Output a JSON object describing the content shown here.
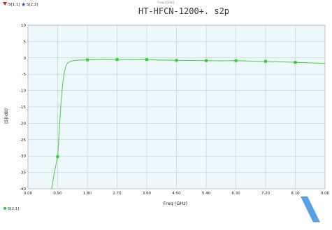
{
  "chart_data": {
    "type": "line",
    "title": "HT-HFCN-1200+. s2p",
    "top_caption": "Freq [GHz]",
    "xlabel": "Freq (GHz)",
    "ylabel": "|S|(dB)",
    "xlim": [
      0,
      9
    ],
    "ylim": [
      -40,
      10
    ],
    "xticks": [
      "0.00",
      "0.90",
      "1.80",
      "2.70",
      "3.60",
      "4.50",
      "5.40",
      "6.30",
      "7.20",
      "8.10",
      "9.00"
    ],
    "yticks": [
      "10",
      "5",
      "0",
      "-5",
      "-10",
      "-15",
      "-20",
      "-25",
      "-30",
      "-35",
      "-40"
    ],
    "grid": true,
    "top_legend": [
      {
        "label": "S[1,1]",
        "color": "#cc2222",
        "marker": "down-triangle"
      },
      {
        "label": "S[2,2]",
        "color": "#2244cc",
        "marker": "star"
      }
    ],
    "bottom_legend": [
      {
        "label": "S[2,1]",
        "color": "#33cc33",
        "marker": "circle"
      }
    ],
    "series": [
      {
        "name": "S[2,1]",
        "color": "#4cc84c",
        "x": [
          0.72,
          0.76,
          0.8,
          0.85,
          0.9,
          0.95,
          1.0,
          1.05,
          1.1,
          1.15,
          1.2,
          1.3,
          1.4,
          1.5,
          1.6,
          1.8,
          2.0,
          2.3,
          2.7,
          3.0,
          3.3,
          3.6,
          4.0,
          4.5,
          5.0,
          5.4,
          5.8,
          6.3,
          6.8,
          7.2,
          7.6,
          8.1,
          8.5,
          9.0
        ],
        "y": [
          -40,
          -37.5,
          -35,
          -32.5,
          -30.2,
          -22,
          -14,
          -8,
          -4.5,
          -2.5,
          -1.6,
          -1.0,
          -0.8,
          -0.7,
          -0.65,
          -0.6,
          -0.58,
          -0.5,
          -0.5,
          -0.55,
          -0.55,
          -0.5,
          -0.65,
          -0.75,
          -0.8,
          -0.85,
          -0.9,
          -0.85,
          -1.0,
          -1.05,
          -1.2,
          -1.35,
          -1.5,
          -1.7
        ]
      }
    ],
    "markers": {
      "series": "S[2,1]",
      "x": [
        0.9,
        1.8,
        2.7,
        3.6,
        4.5,
        5.4,
        6.3,
        7.2,
        8.1
      ],
      "y": [
        -30.2,
        -0.6,
        -0.5,
        -0.5,
        -0.75,
        -0.85,
        -0.85,
        -1.05,
        -1.35
      ]
    }
  }
}
